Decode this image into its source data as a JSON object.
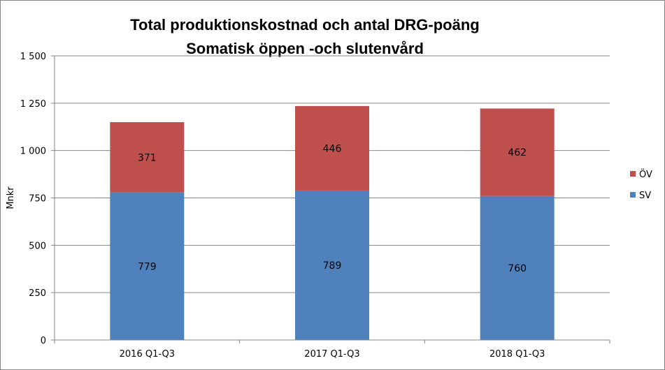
{
  "chart_data": {
    "type": "bar",
    "stacked": true,
    "title": "Total produktionskostnad och antal DRG-poäng",
    "subtitle": "Somatisk öppen -och slutenvård",
    "ylabel": "Mnkr",
    "xlabel": "",
    "ylim": [
      0,
      1500
    ],
    "yticks": [
      0,
      250,
      500,
      750,
      1000,
      1250,
      1500
    ],
    "ytick_labels": [
      "0",
      "250",
      "500",
      "750",
      "1 000",
      "1 250",
      "1 500"
    ],
    "categories": [
      "2016 Q1-Q3",
      "2017 Q1-Q3",
      "2018 Q1-Q3"
    ],
    "series": [
      {
        "name": "SV",
        "color": "#4F81BD",
        "values": [
          779,
          789,
          760
        ]
      },
      {
        "name": "ÖV",
        "color": "#C0504D",
        "values": [
          371,
          446,
          462
        ]
      }
    ],
    "legend_order": [
      "ÖV",
      "SV"
    ],
    "legend_position": "right",
    "grid": true
  }
}
